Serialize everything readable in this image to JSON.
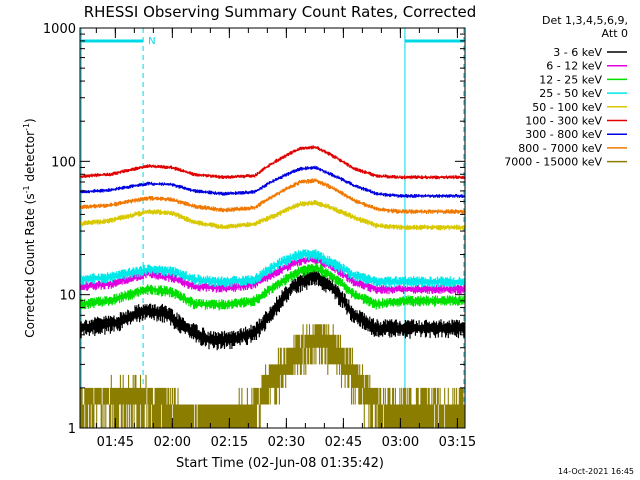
{
  "chart_data": {
    "type": "line",
    "title": "RHESSI Observing Summary Count Rates, Corrected",
    "xlabel": "Start Time (02-Jun-08 01:35:42)",
    "ylabel_main": "Corrected Count Rate (s",
    "ylabel_sup1": "-1",
    "ylabel_mid": " detector",
    "ylabel_sup2": "-1",
    "ylabel_end": ")",
    "x_unit": "minutes since 01:35:42",
    "xlim": [
      0,
      101.3
    ],
    "ylim": [
      1,
      1000
    ],
    "yscale": "log",
    "x_ticks": [
      {
        "x": 9.3,
        "label": "01:45"
      },
      {
        "x": 24.3,
        "label": "02:00"
      },
      {
        "x": 39.3,
        "label": "02:15"
      },
      {
        "x": 54.3,
        "label": "02:30"
      },
      {
        "x": 69.3,
        "label": "02:45"
      },
      {
        "x": 84.3,
        "label": "03:00"
      },
      {
        "x": 99.3,
        "label": "03:15"
      }
    ],
    "y_ticks": [
      {
        "y": 1,
        "label": "1"
      },
      {
        "y": 10,
        "label": "10"
      },
      {
        "y": 100,
        "label": "100"
      },
      {
        "y": 1000,
        "label": "1000"
      }
    ],
    "legend": {
      "position": "top-right",
      "header1": "Det 1,3,4,5,6,9,",
      "header2": "Att 0"
    },
    "series": [
      {
        "name": "3 - 6 keV",
        "color": "#000000",
        "base": 5.6,
        "ph": 15,
        "noise": 0.12,
        "knots": [
          [
            0,
            5.6
          ],
          [
            10,
            6.2
          ],
          [
            16,
            7.5
          ],
          [
            22,
            7.3
          ],
          [
            28,
            5.6
          ],
          [
            34,
            4.6
          ],
          [
            40,
            4.6
          ],
          [
            46,
            5.2
          ],
          [
            50,
            7.0
          ],
          [
            56,
            11.5
          ],
          [
            62,
            14.0
          ],
          [
            66,
            11.5
          ],
          [
            72,
            7.0
          ],
          [
            78,
            5.6
          ],
          [
            84,
            5.6
          ],
          [
            100,
            5.6
          ]
        ]
      },
      {
        "name": "6 - 12 keV",
        "color": "#e000e0",
        "base": 11.5,
        "ph": 4,
        "noise": 0.06,
        "knots": [
          [
            0,
            11.5
          ],
          [
            8,
            12
          ],
          [
            18,
            14.5
          ],
          [
            24,
            13.5
          ],
          [
            30,
            11.5
          ],
          [
            38,
            11.2
          ],
          [
            46,
            12
          ],
          [
            52,
            15
          ],
          [
            58,
            18
          ],
          [
            62,
            18.5
          ],
          [
            66,
            16.5
          ],
          [
            72,
            12.5
          ],
          [
            78,
            11
          ],
          [
            84,
            11
          ],
          [
            100,
            11
          ]
        ]
      },
      {
        "name": "12 - 25 keV",
        "color": "#00e000",
        "base": 8.8,
        "ph": 6,
        "noise": 0.07,
        "knots": [
          [
            0,
            8.5
          ],
          [
            8,
            9
          ],
          [
            18,
            11
          ],
          [
            24,
            10.5
          ],
          [
            30,
            8.6
          ],
          [
            38,
            8.4
          ],
          [
            46,
            9
          ],
          [
            52,
            12
          ],
          [
            58,
            15
          ],
          [
            62,
            16
          ],
          [
            66,
            14
          ],
          [
            72,
            10
          ],
          [
            78,
            8.5
          ],
          [
            84,
            9
          ],
          [
            100,
            9
          ]
        ]
      },
      {
        "name": "25 - 50 keV",
        "color": "#00e8e8",
        "base": 13,
        "ph": 9,
        "noise": 0.07,
        "knots": [
          [
            0,
            13
          ],
          [
            8,
            13.5
          ],
          [
            18,
            15.5
          ],
          [
            24,
            15
          ],
          [
            30,
            13
          ],
          [
            38,
            12.5
          ],
          [
            46,
            13
          ],
          [
            52,
            17
          ],
          [
            58,
            20
          ],
          [
            62,
            20
          ],
          [
            66,
            17.5
          ],
          [
            72,
            14
          ],
          [
            78,
            12.5
          ],
          [
            84,
            12.5
          ],
          [
            100,
            12.5
          ]
        ]
      },
      {
        "name": "50 - 100 keV",
        "color": "#d8c800",
        "base": 35,
        "ph": 11,
        "noise": 0.035,
        "knots": [
          [
            0,
            34
          ],
          [
            8,
            36
          ],
          [
            18,
            42
          ],
          [
            24,
            41
          ],
          [
            30,
            35
          ],
          [
            38,
            32
          ],
          [
            46,
            34
          ],
          [
            52,
            40
          ],
          [
            58,
            48
          ],
          [
            62,
            49
          ],
          [
            66,
            45
          ],
          [
            72,
            38
          ],
          [
            78,
            33
          ],
          [
            84,
            32
          ],
          [
            100,
            32
          ]
        ]
      },
      {
        "name": "100 - 300 keV",
        "color": "#e00000",
        "base": 78,
        "ph": 2,
        "noise": 0.025,
        "knots": [
          [
            0,
            77
          ],
          [
            8,
            80
          ],
          [
            18,
            92
          ],
          [
            24,
            90
          ],
          [
            30,
            80
          ],
          [
            38,
            76
          ],
          [
            46,
            78
          ],
          [
            52,
            102
          ],
          [
            58,
            125
          ],
          [
            62,
            128
          ],
          [
            66,
            112
          ],
          [
            72,
            88
          ],
          [
            78,
            78
          ],
          [
            84,
            76
          ],
          [
            100,
            76
          ]
        ]
      },
      {
        "name": "300 - 800 keV",
        "color": "#0000e0",
        "base": 60,
        "ph": 13,
        "noise": 0.025,
        "knots": [
          [
            0,
            59
          ],
          [
            8,
            61
          ],
          [
            18,
            68
          ],
          [
            24,
            67
          ],
          [
            30,
            60
          ],
          [
            38,
            57
          ],
          [
            46,
            59
          ],
          [
            52,
            74
          ],
          [
            58,
            88
          ],
          [
            62,
            90
          ],
          [
            66,
            80
          ],
          [
            72,
            66
          ],
          [
            78,
            57
          ],
          [
            84,
            55
          ],
          [
            100,
            55
          ]
        ]
      },
      {
        "name": "800 - 7000 keV",
        "color": "#f07800",
        "base": 45,
        "ph": 17,
        "noise": 0.03,
        "knots": [
          [
            0,
            45
          ],
          [
            8,
            47
          ],
          [
            18,
            53
          ],
          [
            24,
            52
          ],
          [
            30,
            46
          ],
          [
            38,
            43
          ],
          [
            46,
            45
          ],
          [
            52,
            57
          ],
          [
            58,
            70
          ],
          [
            62,
            72
          ],
          [
            66,
            64
          ],
          [
            72,
            51
          ],
          [
            78,
            44
          ],
          [
            84,
            42
          ],
          [
            100,
            42
          ]
        ]
      },
      {
        "name": "7000 - 15000 keV",
        "color": "#8b7d00",
        "base": 1.5,
        "ph": 21,
        "noise": 0,
        "knots": [
          [
            0,
            1.5
          ],
          [
            14,
            1.8
          ],
          [
            22,
            1.6
          ],
          [
            30,
            1.2
          ],
          [
            46,
            1.4
          ],
          [
            52,
            2.8
          ],
          [
            58,
            4.2
          ],
          [
            62,
            5.2
          ],
          [
            68,
            4.0
          ],
          [
            72,
            2.5
          ],
          [
            78,
            1.6
          ],
          [
            84,
            1.5
          ],
          [
            100,
            1.5
          ]
        ]
      }
    ],
    "annotations": {
      "marker_label": "N",
      "bar_color": "#00d8e8",
      "vlines_solid_x": [
        0.3,
        85.5
      ],
      "vlines_dashed_x": [
        16.6,
        101.0
      ],
      "bars": [
        [
          0.3,
          16.6
        ],
        [
          85.5,
          101.0
        ]
      ]
    }
  },
  "footer": {
    "timestamp": "14-Oct-2021 16:45"
  }
}
